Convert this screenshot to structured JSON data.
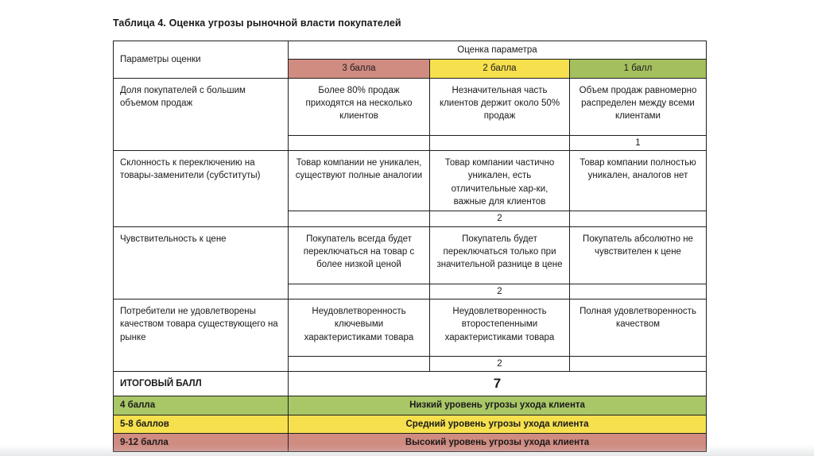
{
  "title": "Таблица 4. Оценка угрозы рыночной власти покупателей",
  "colors": {
    "score3_bg": "#d18c82",
    "score2_bg": "#f6e04e",
    "score1_bg": "#a4c05e",
    "legend_low_bg": "#a9c767",
    "legend_mid_bg": "#f6e04e",
    "legend_high_bg": "#d18c82"
  },
  "header": {
    "params": "Параметры оценки",
    "assessment": "Оценка параметра",
    "score3": "3 балла",
    "score2": "2 балла",
    "score1": "1 балл"
  },
  "rows": [
    {
      "param": "Доля покупателей с большим объемом продаж",
      "score3": "Более 80% продаж приходятся на несколько клиентов",
      "score2": "Незначительная часть клиентов держит около 50% продаж",
      "score1": "Объем продаж равномерно распределен между всеми клиентами",
      "points": [
        "",
        "",
        "1"
      ]
    },
    {
      "param": "Склонность к переключению на товары-заменители (субституты)",
      "score3": "Товар компании не уникален, существуют полные аналогии",
      "score2": "Товар компании частично уникален, есть отличительные хар-ки, важные для клиентов",
      "score1": "Товар компании полностью уникален, аналогов нет",
      "points": [
        "",
        "2",
        ""
      ]
    },
    {
      "param": "Чувствительность к цене",
      "score3": "Покупатель всегда будет переключаться на товар с более низкой ценой",
      "score2": "Покупатель будет переключаться только при значительной разнице в цене",
      "score1": "Покупатель абсолютно не чувствителен к цене",
      "points": [
        "",
        "2",
        ""
      ]
    },
    {
      "param": "Потребители не удовлетворены качеством товара существующего на рынке",
      "score3": "Неудовлетворенность ключевыми характеристиками товара",
      "score2": "Неудовлетворенность второстепенными характеристиками товара",
      "score1": "Полная удовлетворенность качеством",
      "points": [
        "",
        "2",
        ""
      ]
    }
  ],
  "total": {
    "label": "ИТОГОВЫЙ БАЛЛ",
    "value": "7"
  },
  "legend": [
    {
      "range": "4 балла",
      "text": "Низкий уровень угрозы ухода клиента"
    },
    {
      "range": "5-8 баллов",
      "text": "Средний уровень угрозы ухода клиента"
    },
    {
      "range": "9-12 балла",
      "text": "Высокий уровень угрозы ухода клиента"
    }
  ]
}
